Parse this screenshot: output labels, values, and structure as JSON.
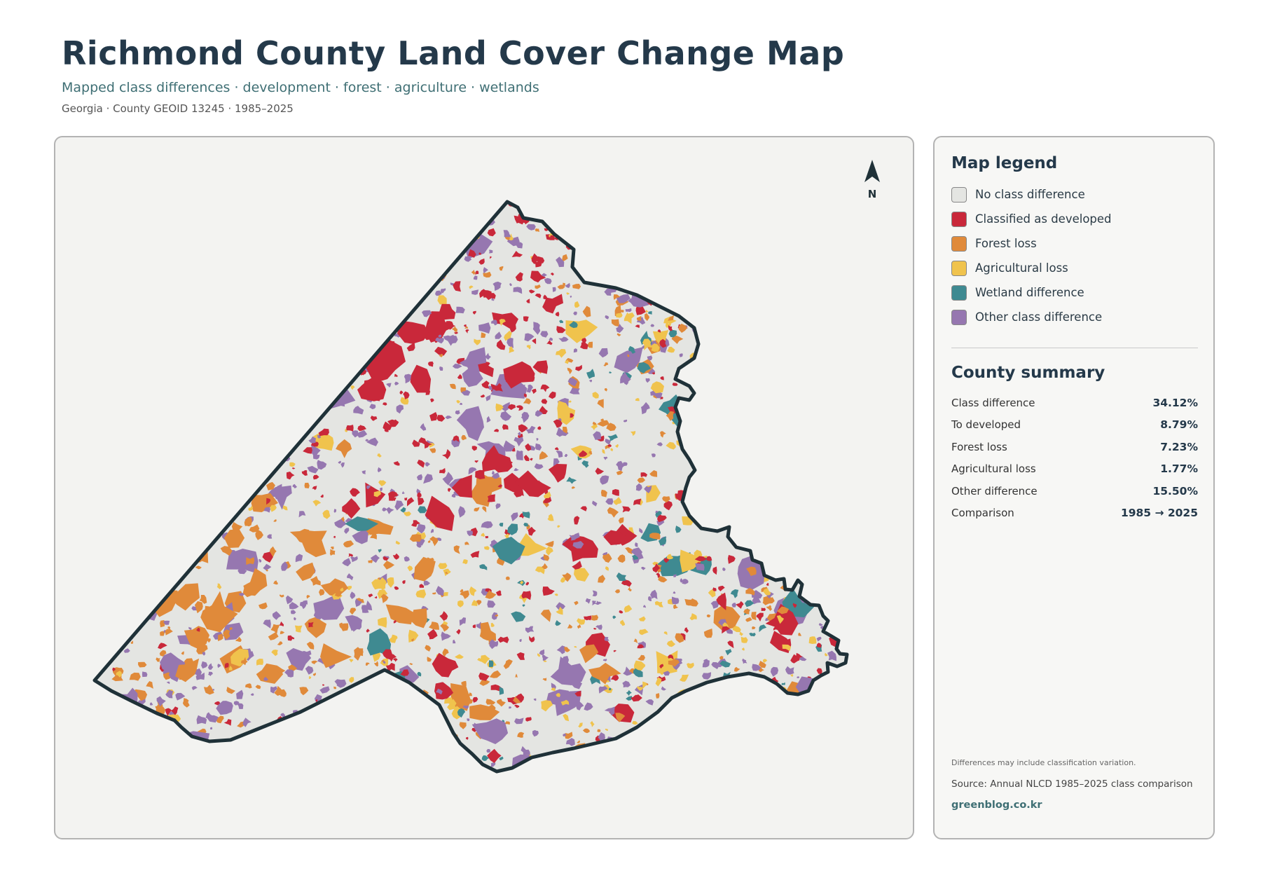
{
  "header": {
    "title": "Richmond County Land Cover Change Map",
    "subtitle": "Mapped class differences · development · forest · agriculture · wetlands",
    "meta": "Georgia · County GEOID 13245 · 1985–2025"
  },
  "map": {
    "north_label": "N",
    "colors": {
      "background": "#f3f3f1",
      "county_fill": "#e4e5e2",
      "outline": "#1f3138"
    }
  },
  "legend": {
    "title": "Map legend",
    "items": [
      {
        "label": "No class difference",
        "color": "#e4e5e2"
      },
      {
        "label": "Classified as developed",
        "color": "#c9283a"
      },
      {
        "label": "Forest loss",
        "color": "#e08a3a"
      },
      {
        "label": "Agricultural loss",
        "color": "#f0c34d"
      },
      {
        "label": "Wetland difference",
        "color": "#3f8a91"
      },
      {
        "label": "Other class difference",
        "color": "#9677b0"
      }
    ]
  },
  "summary": {
    "title": "County summary",
    "rows": [
      {
        "label": "Class difference",
        "value": "34.12%"
      },
      {
        "label": "To developed",
        "value": "8.79%"
      },
      {
        "label": "Forest loss",
        "value": "7.23%"
      },
      {
        "label": "Agricultural loss",
        "value": "1.77%"
      },
      {
        "label": "Other difference",
        "value": "15.50%"
      },
      {
        "label": "Comparison",
        "value": "1985 → 2025"
      }
    ]
  },
  "footer": {
    "note": "Differences may include classification variation.",
    "source": "Source: Annual NLCD 1985–2025 class comparison",
    "brand": "greenblog.co.kr"
  }
}
